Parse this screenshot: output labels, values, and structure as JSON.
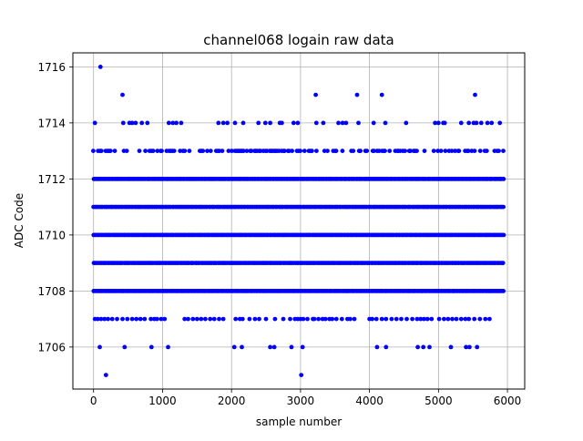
{
  "chart_data": {
    "type": "scatter",
    "title": "channel068 logain raw data",
    "xlabel": "sample number",
    "ylabel": "ADC Code",
    "xlim": [
      -300,
      6250
    ],
    "ylim": [
      1704.5,
      1716.5
    ],
    "xticks": [
      0,
      1000,
      2000,
      3000,
      4000,
      5000,
      6000
    ],
    "yticks": [
      1706,
      1708,
      1710,
      1712,
      1714,
      1716
    ],
    "grid": true,
    "marker_color": "#0000ff",
    "series": [
      {
        "x_range": [
          0,
          5950
        ],
        "dense_levels": [
          1708,
          1709,
          1710,
          1711,
          1712,
          1713
        ],
        "level_density": {
          "1713": 0.45
        },
        "scattered": {
          "1716": [
            100
          ],
          "1715": [
            420,
            3220,
            3820,
            4180,
            5530
          ],
          "1714": [
            20,
            430,
            520,
            560,
            610,
            700,
            780,
            1090,
            1150,
            1200,
            1270,
            1810,
            1880,
            1940,
            2050,
            2170,
            2390,
            2490,
            2560,
            2700,
            2730,
            2900,
            2960,
            3230,
            3330,
            3550,
            3610,
            3660,
            3840,
            4060,
            4230,
            4530,
            4950,
            5000,
            5070,
            5090,
            5330,
            5440,
            5510,
            5550,
            5620,
            5710,
            5770,
            5890
          ],
          "1707": [
            20,
            60,
            110,
            160,
            210,
            270,
            340,
            420,
            490,
            560,
            620,
            680,
            740,
            830,
            880,
            920,
            980,
            1030,
            1320,
            1370,
            1440,
            1500,
            1560,
            1620,
            1690,
            1750,
            1820,
            1880,
            2060,
            2120,
            2160,
            2260,
            2340,
            2400,
            2500,
            2630,
            2750,
            2850,
            2920,
            2960,
            3000,
            3040,
            3100,
            3180,
            3200,
            3260,
            3320,
            3360,
            3420,
            3460,
            3520,
            3600,
            3680,
            3720,
            3780,
            4000,
            4040,
            4100,
            4180,
            4240,
            4320,
            4390,
            4460,
            4540,
            4620,
            4690,
            4740,
            4790,
            4840,
            4900,
            5010,
            5080,
            5140,
            5200,
            5260,
            5330,
            5390,
            5440,
            5520,
            5600,
            5680,
            5740
          ],
          "1706": [
            90,
            450,
            840,
            1080,
            2040,
            2150,
            2560,
            2620,
            2870,
            3030,
            4110,
            4240,
            4700,
            4780,
            4870,
            5180,
            5400,
            5450,
            5560
          ],
          "1705": [
            180,
            3010
          ]
        }
      }
    ]
  }
}
